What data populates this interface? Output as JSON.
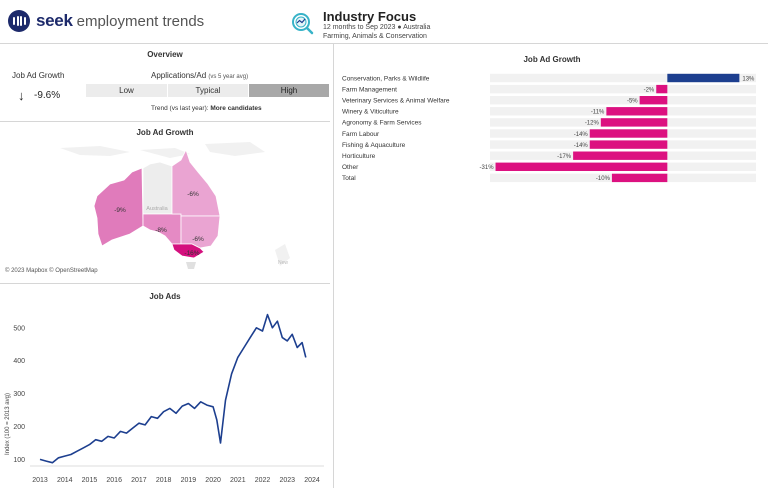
{
  "header": {
    "brand": "seek",
    "brand_sub": "employment trends",
    "title": "Industry Focus",
    "subtitle_line1": "12 months to Sep 2023 ● Australia",
    "subtitle_line2": "Farming, Animals & Conservation"
  },
  "overview": {
    "title": "Overview",
    "growth_label": "Job Ad Growth",
    "growth_arrow": "↓",
    "growth_value": "-9.6%",
    "apps_label": "Applications/Ad",
    "apps_label_note": "(vs 5 year avg)",
    "segments": [
      {
        "label": "Low",
        "active": false
      },
      {
        "label": "Typical",
        "active": false
      },
      {
        "label": "High",
        "active": true
      }
    ],
    "trend_prefix": "Trend (vs last year): ",
    "trend_value": "More candidates"
  },
  "map": {
    "title": "Job Ad Growth",
    "country_label": "Australia",
    "nz_label": "New",
    "credit": "© 2023 Mapbox  © OpenStreetMap",
    "regions": [
      {
        "name": "WA",
        "label": "-9%",
        "color": "#e07bbb"
      },
      {
        "name": "NT",
        "label": "",
        "color": "#ededed"
      },
      {
        "name": "SA",
        "label": "-8%",
        "color": "#e58ac4"
      },
      {
        "name": "QLD",
        "label": "-6%",
        "color": "#eaa4d2"
      },
      {
        "name": "NSW",
        "label": "-6%",
        "color": "#eaa4d2"
      },
      {
        "name": "VIC",
        "label": "-16%",
        "color": "#d4107e"
      }
    ]
  },
  "job_ads": {
    "title": "Job Ads",
    "ylabel": "Index (100 = 2013 avg)",
    "line_color": "#1d3f8f"
  },
  "bar_panel": {
    "title": "Job Ad Growth",
    "positive_color": "#1d3f8f",
    "negative_color": "#dc1180"
  },
  "chart_data": [
    {
      "type": "bar",
      "orientation": "horizontal",
      "title": "Job Ad Growth",
      "categories": [
        "Conservation, Parks & Wildlife",
        "Farm Management",
        "Veterinary Services & Animal Welfare",
        "Winery & Viticulture",
        "Agronomy & Farm Services",
        "Farm Labour",
        "Fishing & Aquaculture",
        "Horticulture",
        "Other",
        "Total"
      ],
      "values": [
        13,
        -2,
        -5,
        -11,
        -12,
        -14,
        -14,
        -17,
        -31,
        -10
      ],
      "labels": [
        "13%",
        "-2%",
        "-5%",
        "-11%",
        "-12%",
        "-14%",
        "-14%",
        "-17%",
        "-31%",
        "-10%"
      ],
      "xlim": [
        -32,
        16
      ]
    },
    {
      "type": "line",
      "title": "Job Ads",
      "xlabel": "",
      "ylabel": "Index (100 = 2013 avg)",
      "xticks": [
        "2013",
        "2014",
        "2015",
        "2016",
        "2017",
        "2018",
        "2019",
        "2020",
        "2021",
        "2022",
        "2023",
        "2024"
      ],
      "yticks": [
        100,
        200,
        300,
        400,
        500
      ],
      "xlim": [
        2013,
        2024
      ],
      "ylim": [
        80,
        560
      ],
      "grid": false,
      "series": [
        {
          "x": [
            2013.0,
            2013.25,
            2013.5,
            2013.75,
            2014.0,
            2014.25,
            2014.5,
            2014.75,
            2015.0,
            2015.25,
            2015.5,
            2015.75,
            2016.0,
            2016.25,
            2016.5,
            2016.75,
            2017.0,
            2017.25,
            2017.5,
            2017.75,
            2018.0,
            2018.25,
            2018.5,
            2018.75,
            2019.0,
            2019.25,
            2019.5,
            2019.75,
            2020.0,
            2020.15,
            2020.3,
            2020.5,
            2020.75,
            2021.0,
            2021.25,
            2021.5,
            2021.75,
            2022.0,
            2022.2,
            2022.4,
            2022.6,
            2022.8,
            2023.0,
            2023.2,
            2023.4,
            2023.6,
            2023.75
          ],
          "y": [
            100,
            95,
            90,
            105,
            110,
            115,
            125,
            135,
            145,
            160,
            155,
            170,
            165,
            185,
            180,
            195,
            210,
            205,
            230,
            225,
            245,
            255,
            240,
            262,
            270,
            255,
            275,
            265,
            260,
            220,
            150,
            280,
            360,
            410,
            440,
            470,
            500,
            490,
            540,
            500,
            520,
            470,
            460,
            480,
            440,
            455,
            410
          ]
        }
      ]
    }
  ]
}
